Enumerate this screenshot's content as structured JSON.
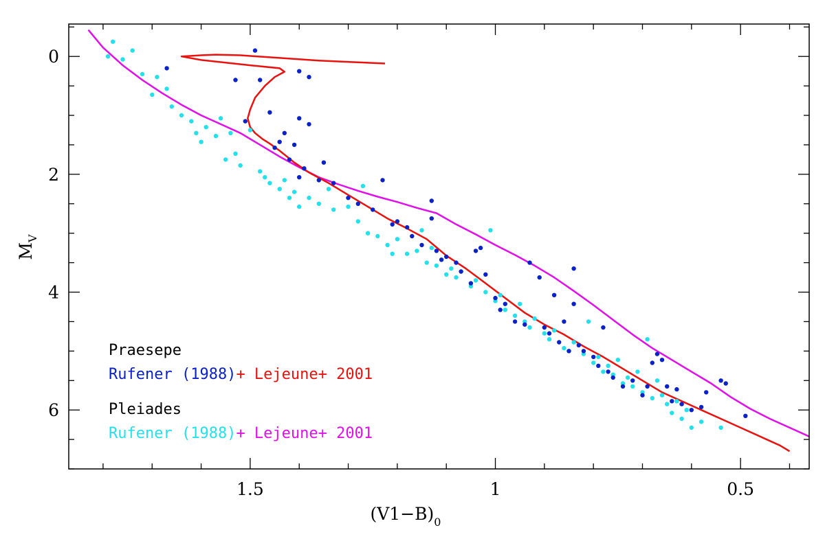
{
  "chart_data": {
    "type": "scatter",
    "title": "",
    "xlabel": "(V1−B)",
    "xlabel_subscript": "0",
    "ylabel": "M",
    "ylabel_subscript": "V",
    "xlim": [
      1.87,
      0.36
    ],
    "ylim": [
      7.0,
      -0.55
    ],
    "x_inverted": true,
    "y_inverted": true,
    "grid": false,
    "x_major_ticks": [
      1.5,
      1,
      0.5
    ],
    "x_tick_labels": [
      "1.5",
      "1",
      "0.5"
    ],
    "y_major_ticks": [
      0,
      2,
      4,
      6
    ],
    "y_tick_labels": [
      "0",
      "2",
      "4",
      "6"
    ],
    "legend": {
      "placement": "bottom-left",
      "groups": [
        {
          "title": "Praesepe",
          "title_color": "#000000",
          "entries": [
            {
              "text": "Rufener (1988)",
              "color": "#0b22c7"
            },
            {
              "text": "+ Lejeune+ 2001",
              "color": "#e8120f"
            }
          ]
        },
        {
          "title": "Pleiades",
          "title_color": "#000000",
          "entries": [
            {
              "text": "Rufener (1988)",
              "color": "#25e0ea"
            },
            {
              "text": "+ Lejeune+ 2001",
              "color": "#e010e8"
            }
          ]
        }
      ]
    },
    "series": [
      {
        "kind": "line",
        "color": "#e010e8",
        "points": [
          [
            1.83,
            -0.45
          ],
          [
            1.8,
            -0.15
          ],
          [
            1.76,
            0.15
          ],
          [
            1.72,
            0.4
          ],
          [
            1.68,
            0.62
          ],
          [
            1.64,
            0.82
          ],
          [
            1.6,
            1.0
          ],
          [
            1.56,
            1.15
          ],
          [
            1.52,
            1.3
          ],
          [
            1.48,
            1.5
          ],
          [
            1.44,
            1.7
          ],
          [
            1.4,
            1.88
          ],
          [
            1.36,
            2.05
          ],
          [
            1.32,
            2.17
          ],
          [
            1.28,
            2.28
          ],
          [
            1.24,
            2.38
          ],
          [
            1.2,
            2.47
          ],
          [
            1.16,
            2.57
          ],
          [
            1.12,
            2.66
          ],
          [
            1.08,
            2.85
          ],
          [
            1.04,
            3.02
          ],
          [
            1.0,
            3.2
          ],
          [
            0.96,
            3.37
          ],
          [
            0.92,
            3.55
          ],
          [
            0.88,
            3.75
          ],
          [
            0.84,
            3.98
          ],
          [
            0.8,
            4.22
          ],
          [
            0.76,
            4.47
          ],
          [
            0.72,
            4.72
          ],
          [
            0.68,
            4.95
          ],
          [
            0.64,
            5.15
          ],
          [
            0.6,
            5.35
          ],
          [
            0.56,
            5.55
          ],
          [
            0.52,
            5.78
          ],
          [
            0.48,
            5.98
          ],
          [
            0.44,
            6.15
          ],
          [
            0.4,
            6.3
          ],
          [
            0.36,
            6.45
          ],
          [
            0.32,
            6.55
          ],
          [
            0.29,
            6.6
          ]
        ]
      },
      {
        "kind": "line",
        "color": "#e8120f",
        "points": [
          [
            1.225,
            0.12
          ],
          [
            1.28,
            0.1
          ],
          [
            1.36,
            0.07
          ],
          [
            1.45,
            0.02
          ],
          [
            1.52,
            -0.02
          ],
          [
            1.57,
            -0.03
          ],
          [
            1.6,
            -0.02
          ],
          [
            1.64,
            0.0
          ],
          [
            1.6,
            0.06
          ],
          [
            1.5,
            0.15
          ],
          [
            1.44,
            0.2
          ],
          [
            1.43,
            0.26
          ],
          [
            1.45,
            0.35
          ],
          [
            1.47,
            0.5
          ],
          [
            1.49,
            0.7
          ],
          [
            1.5,
            0.9
          ],
          [
            1.505,
            1.05
          ],
          [
            1.5,
            1.2
          ],
          [
            1.49,
            1.3
          ],
          [
            1.475,
            1.4
          ],
          [
            1.46,
            1.48
          ],
          [
            1.44,
            1.6
          ],
          [
            1.41,
            1.8
          ],
          [
            1.38,
            1.97
          ],
          [
            1.34,
            2.15
          ],
          [
            1.3,
            2.35
          ],
          [
            1.26,
            2.55
          ],
          [
            1.22,
            2.75
          ],
          [
            1.18,
            2.92
          ],
          [
            1.14,
            3.1
          ],
          [
            1.1,
            3.38
          ],
          [
            1.06,
            3.6
          ],
          [
            1.02,
            3.85
          ],
          [
            0.98,
            4.1
          ],
          [
            0.94,
            4.35
          ],
          [
            0.9,
            4.55
          ],
          [
            0.86,
            4.72
          ],
          [
            0.82,
            4.92
          ],
          [
            0.78,
            5.1
          ],
          [
            0.74,
            5.3
          ],
          [
            0.7,
            5.5
          ],
          [
            0.66,
            5.7
          ],
          [
            0.62,
            5.85
          ],
          [
            0.58,
            6.0
          ],
          [
            0.54,
            6.15
          ],
          [
            0.5,
            6.3
          ],
          [
            0.46,
            6.45
          ],
          [
            0.42,
            6.6
          ],
          [
            0.4,
            6.7
          ]
        ]
      },
      {
        "kind": "scatter",
        "color": "#25e0ea",
        "points": [
          [
            1.78,
            -0.25
          ],
          [
            1.79,
            0.0
          ],
          [
            1.76,
            0.05
          ],
          [
            1.74,
            -0.1
          ],
          [
            1.72,
            0.3
          ],
          [
            1.7,
            0.65
          ],
          [
            1.69,
            0.35
          ],
          [
            1.67,
            0.55
          ],
          [
            1.66,
            0.85
          ],
          [
            1.64,
            1.0
          ],
          [
            1.62,
            1.1
          ],
          [
            1.61,
            1.3
          ],
          [
            1.6,
            1.45
          ],
          [
            1.59,
            1.2
          ],
          [
            1.57,
            1.35
          ],
          [
            1.56,
            1.05
          ],
          [
            1.55,
            1.75
          ],
          [
            1.54,
            1.3
          ],
          [
            1.53,
            1.65
          ],
          [
            1.52,
            1.85
          ],
          [
            1.5,
            1.25
          ],
          [
            1.48,
            1.95
          ],
          [
            1.47,
            2.05
          ],
          [
            1.46,
            2.15
          ],
          [
            1.44,
            2.25
          ],
          [
            1.43,
            2.1
          ],
          [
            1.42,
            2.4
          ],
          [
            1.41,
            2.3
          ],
          [
            1.4,
            2.55
          ],
          [
            1.38,
            2.4
          ],
          [
            1.36,
            2.5
          ],
          [
            1.34,
            2.25
          ],
          [
            1.33,
            2.6
          ],
          [
            1.3,
            2.55
          ],
          [
            1.28,
            2.8
          ],
          [
            1.27,
            2.2
          ],
          [
            1.26,
            3.0
          ],
          [
            1.24,
            3.05
          ],
          [
            1.22,
            3.2
          ],
          [
            1.2,
            3.1
          ],
          [
            1.18,
            3.35
          ],
          [
            1.16,
            3.3
          ],
          [
            1.15,
            2.95
          ],
          [
            1.14,
            3.5
          ],
          [
            1.12,
            3.55
          ],
          [
            1.11,
            3.45
          ],
          [
            1.1,
            3.7
          ],
          [
            1.08,
            3.75
          ],
          [
            1.07,
            3.65
          ],
          [
            1.05,
            3.9
          ],
          [
            1.04,
            3.8
          ],
          [
            1.02,
            4.0
          ],
          [
            1.0,
            4.15
          ],
          [
            0.99,
            4.05
          ],
          [
            0.98,
            4.3
          ],
          [
            0.96,
            4.4
          ],
          [
            0.95,
            4.2
          ],
          [
            0.94,
            4.5
          ],
          [
            0.93,
            4.6
          ],
          [
            0.92,
            4.45
          ],
          [
            0.9,
            4.7
          ],
          [
            0.89,
            4.8
          ],
          [
            0.88,
            4.65
          ],
          [
            0.86,
            4.95
          ],
          [
            0.85,
            5.0
          ],
          [
            0.84,
            4.85
          ],
          [
            0.82,
            5.05
          ],
          [
            0.81,
            4.5
          ],
          [
            0.8,
            5.2
          ],
          [
            0.79,
            5.1
          ],
          [
            0.78,
            5.35
          ],
          [
            0.77,
            5.25
          ],
          [
            0.76,
            5.4
          ],
          [
            0.75,
            5.15
          ],
          [
            0.74,
            5.55
          ],
          [
            0.73,
            5.45
          ],
          [
            0.72,
            5.6
          ],
          [
            0.71,
            5.35
          ],
          [
            0.7,
            5.7
          ],
          [
            0.69,
            4.8
          ],
          [
            0.68,
            5.8
          ],
          [
            0.67,
            5.5
          ],
          [
            0.66,
            5.75
          ],
          [
            0.65,
            5.9
          ],
          [
            0.64,
            6.05
          ],
          [
            0.63,
            5.85
          ],
          [
            0.62,
            6.15
          ],
          [
            0.61,
            6.0
          ],
          [
            0.6,
            6.3
          ],
          [
            0.58,
            6.2
          ],
          [
            0.54,
            6.3
          ],
          [
            1.01,
            2.95
          ],
          [
            1.13,
            3.25
          ],
          [
            1.21,
            3.35
          ],
          [
            1.09,
            3.6
          ]
        ]
      },
      {
        "kind": "scatter",
        "color": "#0b22c7",
        "points": [
          [
            1.49,
            -0.1
          ],
          [
            1.67,
            0.2
          ],
          [
            1.4,
            0.25
          ],
          [
            1.48,
            0.4
          ],
          [
            1.53,
            0.4
          ],
          [
            1.38,
            0.35
          ],
          [
            1.46,
            0.95
          ],
          [
            1.4,
            1.05
          ],
          [
            1.38,
            1.15
          ],
          [
            1.51,
            1.1
          ],
          [
            1.43,
            1.3
          ],
          [
            1.44,
            1.45
          ],
          [
            1.45,
            1.55
          ],
          [
            1.41,
            1.5
          ],
          [
            1.39,
            1.9
          ],
          [
            1.42,
            1.75
          ],
          [
            1.4,
            2.05
          ],
          [
            1.36,
            2.1
          ],
          [
            1.33,
            2.15
          ],
          [
            1.3,
            2.4
          ],
          [
            1.28,
            2.5
          ],
          [
            1.35,
            1.8
          ],
          [
            1.23,
            2.1
          ],
          [
            1.25,
            2.6
          ],
          [
            1.2,
            2.8
          ],
          [
            1.18,
            2.9
          ],
          [
            1.17,
            3.05
          ],
          [
            1.15,
            3.2
          ],
          [
            1.13,
            2.45
          ],
          [
            1.12,
            3.3
          ],
          [
            1.11,
            3.45
          ],
          [
            1.1,
            3.4
          ],
          [
            1.08,
            3.5
          ],
          [
            1.07,
            3.65
          ],
          [
            1.05,
            3.85
          ],
          [
            1.04,
            3.3
          ],
          [
            1.02,
            3.7
          ],
          [
            1.0,
            4.1
          ],
          [
            0.99,
            4.3
          ],
          [
            0.98,
            4.2
          ],
          [
            0.96,
            4.5
          ],
          [
            0.94,
            4.55
          ],
          [
            0.93,
            3.5
          ],
          [
            0.91,
            3.75
          ],
          [
            0.9,
            4.6
          ],
          [
            0.89,
            4.7
          ],
          [
            0.88,
            4.05
          ],
          [
            0.87,
            4.85
          ],
          [
            0.86,
            4.5
          ],
          [
            0.85,
            5.0
          ],
          [
            0.84,
            4.2
          ],
          [
            0.83,
            4.9
          ],
          [
            0.82,
            5.0
          ],
          [
            0.8,
            5.1
          ],
          [
            0.79,
            5.25
          ],
          [
            0.78,
            4.6
          ],
          [
            0.77,
            5.35
          ],
          [
            0.76,
            5.45
          ],
          [
            0.74,
            5.6
          ],
          [
            0.72,
            5.5
          ],
          [
            0.7,
            5.75
          ],
          [
            0.69,
            5.6
          ],
          [
            0.68,
            5.2
          ],
          [
            0.67,
            5.05
          ],
          [
            0.66,
            5.15
          ],
          [
            0.65,
            5.6
          ],
          [
            0.64,
            5.85
          ],
          [
            0.63,
            5.65
          ],
          [
            0.62,
            5.9
          ],
          [
            0.6,
            6.0
          ],
          [
            0.58,
            5.95
          ],
          [
            0.57,
            5.7
          ],
          [
            0.54,
            5.5
          ],
          [
            0.53,
            5.55
          ],
          [
            0.49,
            6.1
          ],
          [
            0.84,
            3.6
          ],
          [
            1.13,
            2.75
          ],
          [
            1.21,
            2.85
          ],
          [
            1.03,
            3.25
          ]
        ]
      }
    ]
  }
}
